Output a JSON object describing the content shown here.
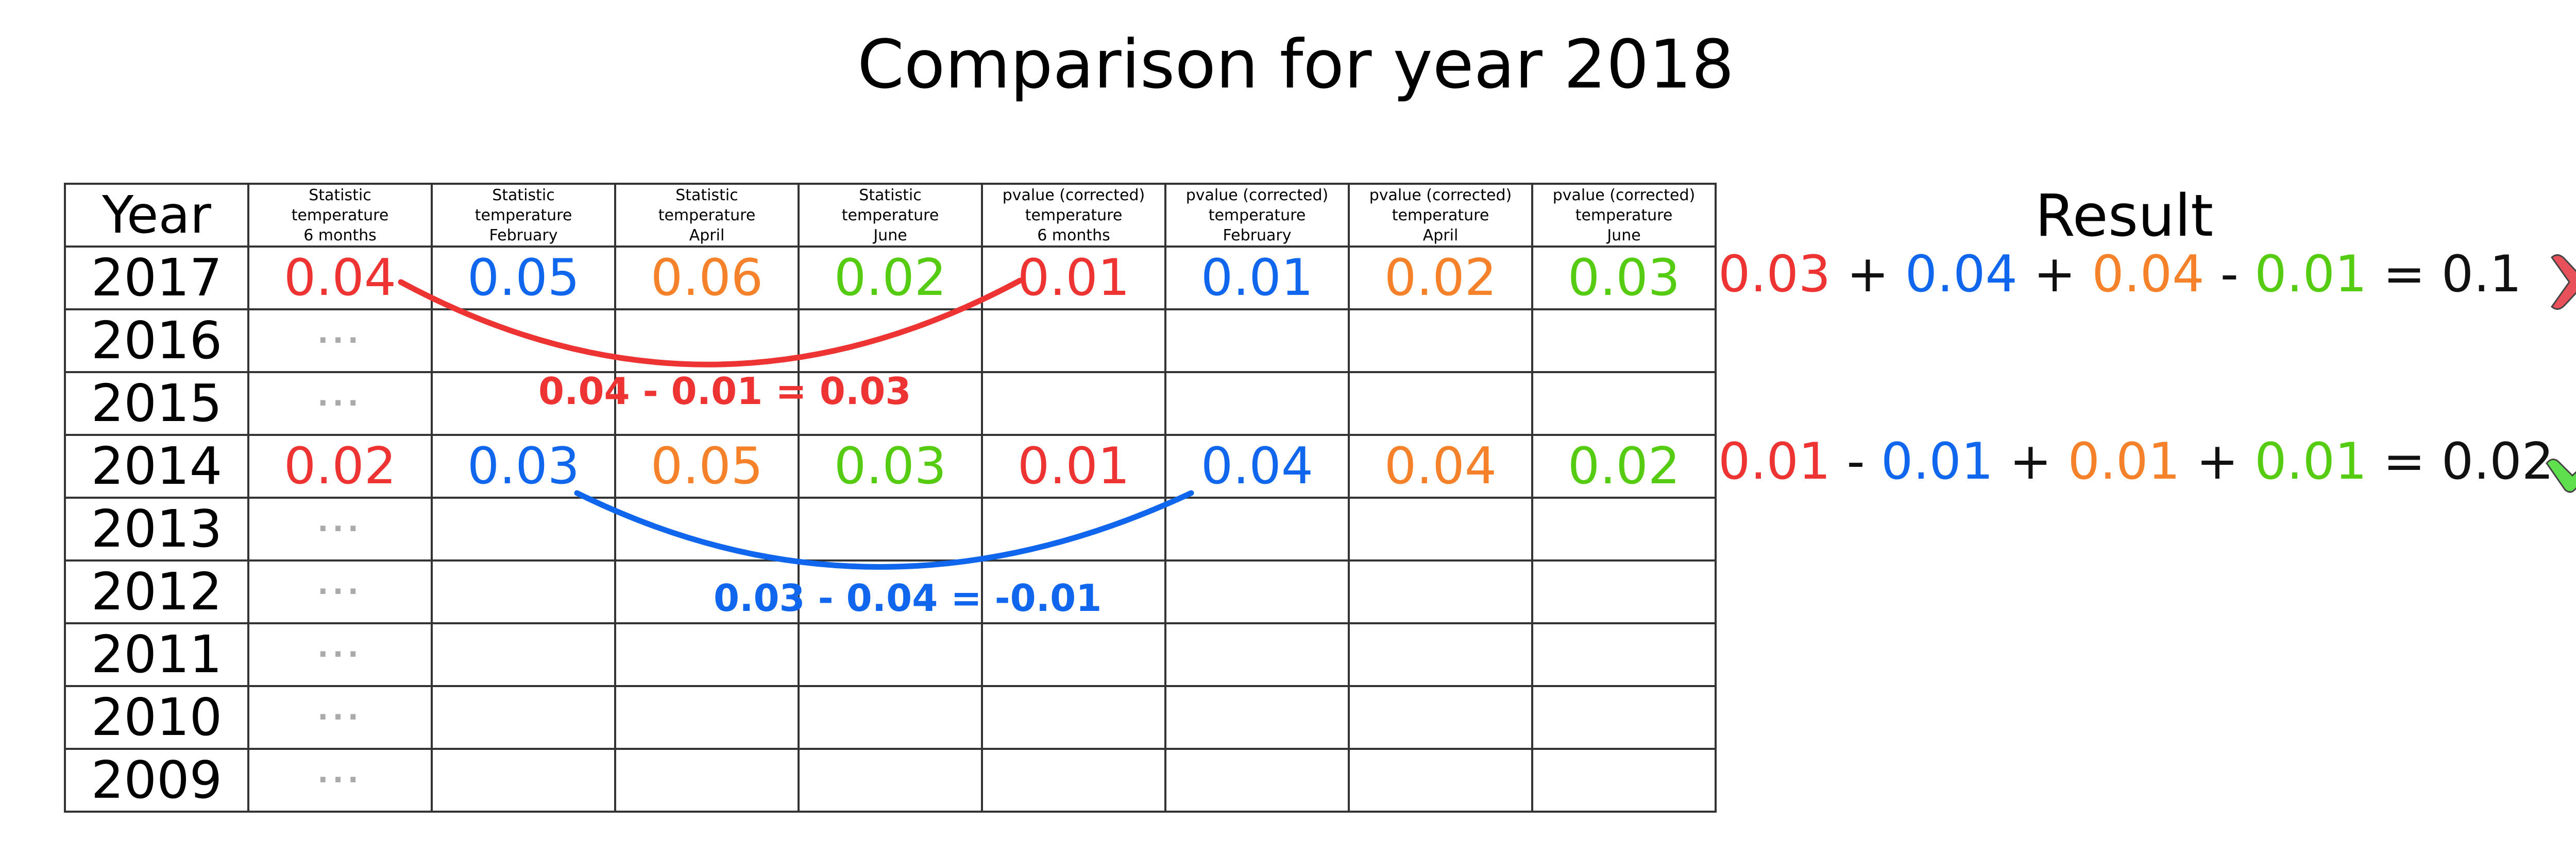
{
  "title": "Comparison for year 2018",
  "colors": {
    "red": "#ee3333",
    "blue": "#1166ee",
    "orange": "#f5822a",
    "green": "#55cc11",
    "black": "#111111",
    "dots": "#aaaaaa",
    "cross": "#e8515a",
    "check": "#5ee04e"
  },
  "table": {
    "year_header": "Year",
    "headers": [
      [
        "Statistic",
        "temperature",
        "6 months"
      ],
      [
        "Statistic",
        "temperature",
        "February"
      ],
      [
        "Statistic",
        "temperature",
        "April"
      ],
      [
        "Statistic",
        "temperature",
        "June"
      ],
      [
        "pvalue (corrected)",
        "temperature",
        "6 months"
      ],
      [
        "pvalue (corrected)",
        "temperature",
        "February"
      ],
      [
        "pvalue (corrected)",
        "temperature",
        "April"
      ],
      [
        "pvalue (corrected)",
        "temperature",
        "June"
      ]
    ],
    "column_colors": [
      "red",
      "blue",
      "orange",
      "green",
      "red",
      "blue",
      "orange",
      "green"
    ],
    "rows": [
      {
        "year": "2017",
        "values": [
          "0.04",
          "0.05",
          "0.06",
          "0.02",
          "0.01",
          "0.01",
          "0.02",
          "0.03"
        ]
      },
      {
        "year": "2016",
        "values": [
          "···",
          "",
          "",
          "",
          "",
          "",
          "",
          ""
        ]
      },
      {
        "year": "2015",
        "values": [
          "···",
          "",
          "",
          "",
          "",
          "",
          "",
          ""
        ]
      },
      {
        "year": "2014",
        "values": [
          "0.02",
          "0.03",
          "0.05",
          "0.03",
          "0.01",
          "0.04",
          "0.04",
          "0.02"
        ]
      },
      {
        "year": "2013",
        "values": [
          "···",
          "",
          "",
          "",
          "",
          "",
          "",
          ""
        ]
      },
      {
        "year": "2012",
        "values": [
          "···",
          "",
          "",
          "",
          "",
          "",
          "",
          ""
        ]
      },
      {
        "year": "2011",
        "values": [
          "···",
          "",
          "",
          "",
          "",
          "",
          "",
          ""
        ]
      },
      {
        "year": "2010",
        "values": [
          "···",
          "",
          "",
          "",
          "",
          "",
          "",
          ""
        ]
      },
      {
        "year": "2009",
        "values": [
          "···",
          "",
          "",
          "",
          "",
          "",
          "",
          ""
        ]
      }
    ]
  },
  "annotations": [
    {
      "text": "0.04 - 0.01 = 0.03",
      "color": "red"
    },
    {
      "text": "0.03 - 0.04 = -0.01",
      "color": "blue"
    }
  ],
  "result": {
    "title": "Result",
    "equations": [
      {
        "parts": [
          {
            "text": "0.03",
            "color": "red"
          },
          {
            "text": " + ",
            "color": "black"
          },
          {
            "text": "0.04",
            "color": "blue"
          },
          {
            "text": " + ",
            "color": "black"
          },
          {
            "text": "0.04",
            "color": "orange"
          },
          {
            "text": " - ",
            "color": "black"
          },
          {
            "text": "0.01",
            "color": "green"
          },
          {
            "text": " = 0.1",
            "color": "black"
          }
        ],
        "status_icon": "cross-icon"
      },
      {
        "parts": [
          {
            "text": "0.01",
            "color": "red"
          },
          {
            "text": " - ",
            "color": "black"
          },
          {
            "text": "0.01",
            "color": "blue"
          },
          {
            "text": " + ",
            "color": "black"
          },
          {
            "text": "0.01",
            "color": "orange"
          },
          {
            "text": " + ",
            "color": "black"
          },
          {
            "text": "0.01",
            "color": "green"
          },
          {
            "text": " = 0.02",
            "color": "black"
          }
        ],
        "status_icon": "check-icon"
      }
    ]
  }
}
